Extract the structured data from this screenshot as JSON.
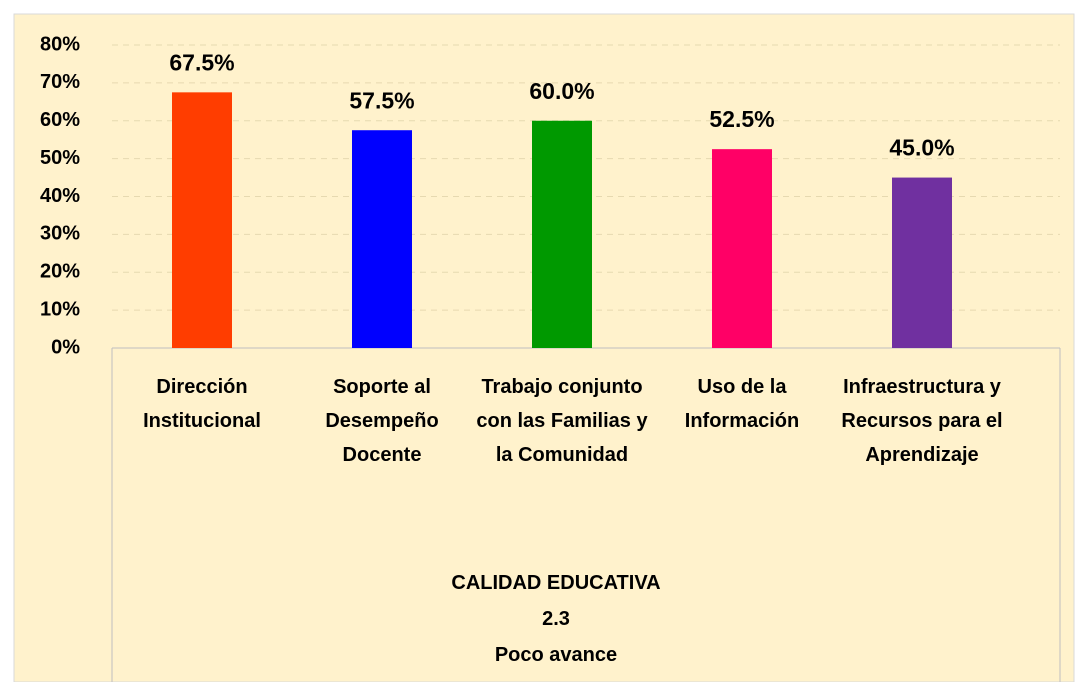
{
  "chart_data": {
    "type": "bar",
    "categories": [
      "Dirección Institucional",
      "Soporte al Desempeño Docente",
      "Trabajo conjunto con las Familias y la Comunidad",
      "Uso de la Información",
      "Infraestructura y Recursos para el Aprendizaje"
    ],
    "values": [
      67.5,
      57.5,
      60.0,
      52.5,
      45.0
    ],
    "value_labels": [
      "67.5%",
      "57.5%",
      "60.0%",
      "52.5%",
      "45.0%"
    ],
    "colors": [
      "#ff3d00",
      "#0000ff",
      "#009900",
      "#ff0066",
      "#7030a0"
    ],
    "xlabel": [
      "CALIDAD EDUCATIVA",
      "2.3",
      "Poco avance"
    ],
    "ylim": [
      0,
      80
    ],
    "yticks": [
      {
        "value": 0,
        "label": "0%"
      },
      {
        "value": 10,
        "label": "10%"
      },
      {
        "value": 20,
        "label": "20%"
      },
      {
        "value": 30,
        "label": "30%"
      },
      {
        "value": 40,
        "label": "40%"
      },
      {
        "value": 50,
        "label": "50%"
      },
      {
        "value": 60,
        "label": "60%"
      },
      {
        "value": 70,
        "label": "70%"
      },
      {
        "value": 80,
        "label": "80%"
      }
    ],
    "grid": true
  }
}
